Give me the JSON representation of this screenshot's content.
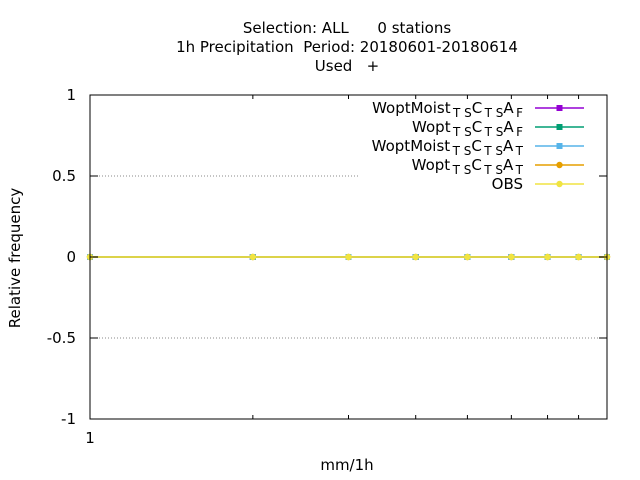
{
  "chart_data": {
    "type": "line",
    "title_lines": [
      "Selection: ALL      0 stations",
      "1h Precipitation  Period: 20180601-20180614",
      "Used   +"
    ],
    "xlabel": "mm/1h",
    "ylabel": "Relative frequency",
    "x_scale": "log",
    "x_tick_labels": [
      "1"
    ],
    "ylim": [
      -1,
      1
    ],
    "y_ticks": [
      1,
      0.5,
      0,
      -0.5,
      -1
    ],
    "y_tick_labels": [
      "1",
      "0.5",
      "0",
      "-0.5",
      "-1"
    ],
    "grid": "horizontal dotted at 0.5 and -0.5",
    "legend_position": "top-right",
    "series": [
      {
        "name_main": "WoptMoist",
        "sub1": "T S",
        "main2": "C",
        "sub2": "T S",
        "main3": "A",
        "sub3": "F",
        "color": "#9400d3",
        "marker": "square"
      },
      {
        "name_main": "Wopt",
        "sub1": "T S",
        "main2": "C",
        "sub2": "T S",
        "main3": "A",
        "sub3": "F",
        "color": "#009e73",
        "marker": "square"
      },
      {
        "name_main": "WoptMoist",
        "sub1": "T S",
        "main2": "C",
        "sub2": "T S",
        "main3": "A",
        "sub3": "T",
        "color": "#56b4e9",
        "marker": "square"
      },
      {
        "name_main": "Wopt",
        "sub1": "T S",
        "main2": "C",
        "sub2": "T S",
        "main3": "A",
        "sub3": "T",
        "color": "#e69f00",
        "marker": "circle"
      },
      {
        "name": "OBS",
        "color": "#f0e442",
        "marker": "circle"
      }
    ],
    "points_x_fraction": [
      0.0,
      0.315,
      0.5,
      0.63,
      0.73,
      0.815,
      0.885,
      0.945,
      1.0
    ],
    "points_y": [
      0,
      0,
      0,
      0,
      0,
      0,
      0,
      0,
      0
    ]
  }
}
